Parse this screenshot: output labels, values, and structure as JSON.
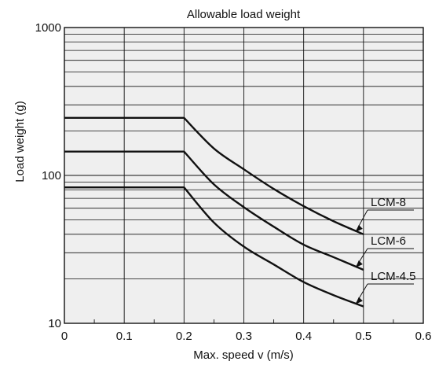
{
  "chart_data": {
    "type": "line",
    "title": "Allowable load weight",
    "xlabel": "Max. speed v (m/s)",
    "ylabel": "Load weight (g)",
    "xlim": [
      0,
      0.6
    ],
    "ylim": [
      10,
      1000
    ],
    "yscale": "log",
    "grid": true,
    "x_ticks": [
      0,
      0.1,
      0.2,
      0.3,
      0.4,
      0.5,
      0.6
    ],
    "x_tick_labels": [
      "0",
      "0.1",
      "0.2",
      "0.3",
      "0.4",
      "0.5",
      "0.6"
    ],
    "y_ticks": [
      10,
      100,
      1000
    ],
    "y_tick_labels": [
      "10",
      "100",
      "1000"
    ],
    "series": [
      {
        "name": "LCM-8",
        "x": [
          0,
          0.2,
          0.25,
          0.3,
          0.35,
          0.4,
          0.45,
          0.5
        ],
        "y": [
          245,
          245,
          152,
          110,
          81,
          62,
          49,
          40
        ]
      },
      {
        "name": "LCM-6",
        "x": [
          0,
          0.2,
          0.25,
          0.3,
          0.35,
          0.4,
          0.45,
          0.5
        ],
        "y": [
          145,
          145,
          87,
          61,
          45,
          34,
          28,
          23
        ]
      },
      {
        "name": "LCM-4.5",
        "x": [
          0,
          0.2,
          0.25,
          0.3,
          0.35,
          0.4,
          0.45,
          0.5
        ],
        "y": [
          83,
          83,
          48,
          33,
          25,
          19,
          15.5,
          13
        ]
      }
    ],
    "colors": {
      "background": "#efefef",
      "grid": "#111111",
      "line": "#111111"
    }
  }
}
